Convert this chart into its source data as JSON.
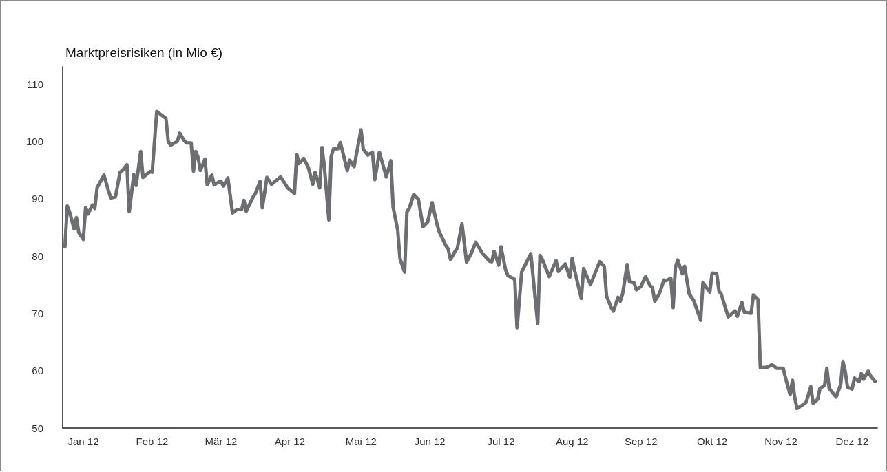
{
  "chart_data": {
    "type": "line",
    "title": "Marktpreisrisiken (in Mio €)",
    "color": "#6d6e71",
    "grid": false,
    "marker": "none",
    "line_style": "solid",
    "xlim": [
      "2012-01-01",
      "2012-12-21"
    ],
    "ylim": [
      50,
      113
    ],
    "yticks": [
      50,
      60,
      70,
      80,
      90,
      100,
      110
    ],
    "xticks": [
      {
        "value": "2012-01-10",
        "label": "Jan 12"
      },
      {
        "value": "2012-02-09",
        "label": "Feb 12"
      },
      {
        "value": "2012-03-10",
        "label": "Mär 12"
      },
      {
        "value": "2012-04-09",
        "label": "Apr 12"
      },
      {
        "value": "2012-05-10",
        "label": "Mai 12"
      },
      {
        "value": "2012-06-09",
        "label": "Jun 12"
      },
      {
        "value": "2012-07-10",
        "label": "Jul 12"
      },
      {
        "value": "2012-08-10",
        "label": "Aug 12"
      },
      {
        "value": "2012-09-09",
        "label": "Sep 12"
      },
      {
        "value": "2012-10-10",
        "label": "Okt 12"
      },
      {
        "value": "2012-11-09",
        "label": "Nov 12"
      },
      {
        "value": "2012-12-10",
        "label": "Dez 12"
      }
    ],
    "x": [
      "2012-01-02",
      "2012-01-03",
      "2012-01-04",
      "2012-01-06",
      "2012-01-07",
      "2012-01-08",
      "2012-01-10",
      "2012-01-11",
      "2012-01-12",
      "2012-01-14",
      "2012-01-15",
      "2012-01-16",
      "2012-01-19",
      "2012-01-21",
      "2012-01-22",
      "2012-01-24",
      "2012-01-26",
      "2012-01-27",
      "2012-01-29",
      "2012-01-30",
      "2012-02-01",
      "2012-02-02",
      "2012-02-04",
      "2012-02-05",
      "2012-02-08",
      "2012-02-09",
      "2012-02-11",
      "2012-02-13",
      "2012-02-15",
      "2012-02-16",
      "2012-02-17",
      "2012-02-20",
      "2012-02-21",
      "2012-02-23",
      "2012-02-24",
      "2012-02-26",
      "2012-02-27",
      "2012-02-28",
      "2012-02-29",
      "2012-03-01",
      "2012-03-03",
      "2012-03-04",
      "2012-03-06",
      "2012-03-07",
      "2012-03-09",
      "2012-03-10",
      "2012-03-11",
      "2012-03-13",
      "2012-03-15",
      "2012-03-17",
      "2012-03-19",
      "2012-03-20",
      "2012-03-21",
      "2012-03-24",
      "2012-03-25",
      "2012-03-27",
      "2012-03-28",
      "2012-03-30",
      "2012-04-01",
      "2012-04-05",
      "2012-04-08",
      "2012-04-11",
      "2012-04-12",
      "2012-04-13",
      "2012-04-15",
      "2012-04-17",
      "2012-04-19",
      "2012-04-20",
      "2012-04-22",
      "2012-04-23",
      "2012-04-24",
      "2012-04-26",
      "2012-04-27",
      "2012-04-28",
      "2012-04-30",
      "2012-05-01",
      "2012-05-04",
      "2012-05-05",
      "2012-05-07",
      "2012-05-10",
      "2012-05-11",
      "2012-05-13",
      "2012-05-15",
      "2012-05-16",
      "2012-05-18",
      "2012-05-21",
      "2012-05-23",
      "2012-05-24",
      "2012-05-26",
      "2012-05-27",
      "2012-05-29",
      "2012-05-30",
      "2012-05-31",
      "2012-06-02",
      "2012-06-04",
      "2012-06-06",
      "2012-06-08",
      "2012-06-10",
      "2012-06-12",
      "2012-06-13",
      "2012-06-16",
      "2012-06-17",
      "2012-06-18",
      "2012-06-20",
      "2012-06-21",
      "2012-06-23",
      "2012-06-25",
      "2012-06-27",
      "2012-06-29",
      "2012-07-02",
      "2012-07-05",
      "2012-07-06",
      "2012-07-07",
      "2012-07-09",
      "2012-07-10",
      "2012-07-12",
      "2012-07-13",
      "2012-07-16",
      "2012-07-17",
      "2012-07-19",
      "2012-07-23",
      "2012-07-26",
      "2012-07-27",
      "2012-07-28",
      "2012-07-31",
      "2012-08-03",
      "2012-08-04",
      "2012-08-07",
      "2012-08-09",
      "2012-08-10",
      "2012-08-11",
      "2012-08-14",
      "2012-08-15",
      "2012-08-18",
      "2012-08-22",
      "2012-08-24",
      "2012-08-25",
      "2012-08-27",
      "2012-08-28",
      "2012-08-30",
      "2012-08-31",
      "2012-09-01",
      "2012-09-03",
      "2012-09-04",
      "2012-09-06",
      "2012-09-07",
      "2012-09-09",
      "2012-09-11",
      "2012-09-13",
      "2012-09-14",
      "2012-09-15",
      "2012-09-17",
      "2012-09-19",
      "2012-09-20",
      "2012-09-22",
      "2012-09-23",
      "2012-09-24",
      "2012-09-25",
      "2012-09-27",
      "2012-09-28",
      "2012-09-30",
      "2012-10-02",
      "2012-10-05",
      "2012-10-06",
      "2012-10-09",
      "2012-10-10",
      "2012-10-12",
      "2012-10-13",
      "2012-10-14",
      "2012-10-16",
      "2012-10-17",
      "2012-10-20",
      "2012-10-21",
      "2012-10-23",
      "2012-10-24",
      "2012-10-27",
      "2012-10-28",
      "2012-10-30",
      "2012-10-31",
      "2012-11-03",
      "2012-11-05",
      "2012-11-06",
      "2012-11-07",
      "2012-11-10",
      "2012-11-11",
      "2012-11-13",
      "2012-11-14",
      "2012-11-15",
      "2012-11-16",
      "2012-11-18",
      "2012-11-20",
      "2012-11-22",
      "2012-11-23",
      "2012-11-25",
      "2012-11-26",
      "2012-11-28",
      "2012-11-29",
      "2012-11-30",
      "2012-12-03",
      "2012-12-05",
      "2012-12-06",
      "2012-12-07",
      "2012-12-08",
      "2012-12-10",
      "2012-12-11",
      "2012-12-13",
      "2012-12-14",
      "2012-12-15",
      "2012-12-17",
      "2012-12-18",
      "2012-12-20"
    ],
    "values": [
      81.6,
      88.7,
      87.7,
      84.7,
      86.7,
      84.1,
      82.9,
      88.5,
      87.3,
      88.9,
      88.3,
      91.9,
      94.1,
      91.3,
      90.1,
      90.3,
      94.6,
      94.9,
      95.9,
      87.7,
      94.2,
      92.3,
      98.2,
      93.7,
      94.7,
      94.6,
      105.2,
      104.6,
      104.0,
      100.0,
      99.3,
      100.0,
      101.4,
      100.1,
      99.7,
      99.7,
      94.8,
      98.2,
      97.2,
      94.9,
      96.9,
      92.4,
      94.1,
      92.4,
      92.9,
      93.0,
      92.2,
      93.6,
      87.5,
      88.1,
      88.1,
      89.7,
      87.8,
      90.3,
      90.9,
      93.0,
      88.4,
      93.7,
      92.5,
      93.8,
      91.9,
      90.9,
      97.7,
      96.1,
      97.0,
      95.5,
      92.5,
      94.6,
      91.9,
      98.9,
      95.7,
      86.3,
      97.3,
      98.7,
      98.7,
      99.8,
      94.9,
      96.7,
      95.6,
      102.0,
      98.6,
      97.6,
      98.1,
      93.3,
      98.1,
      93.8,
      96.6,
      88.5,
      84.5,
      79.5,
      77.2,
      87.7,
      88.3,
      90.7,
      89.9,
      85.1,
      85.9,
      89.3,
      85.7,
      84.3,
      81.8,
      81.2,
      79.4,
      80.8,
      81.4,
      85.6,
      78.9,
      80.4,
      82.4,
      80.4,
      79.1,
      79.0,
      80.8,
      78.4,
      81.6,
      77.6,
      76.6,
      75.9,
      67.5,
      77.2,
      80.4,
      68.2,
      80.1,
      79.4,
      76.4,
      79.2,
      77.3,
      78.6,
      76.3,
      79.6,
      77.6,
      72.6,
      77.8,
      75.0,
      79.0,
      78.2,
      73.0,
      71.0,
      70.4,
      72.8,
      72.1,
      73.4,
      78.5,
      75.5,
      75.3,
      74.1,
      74.7,
      76.4,
      74.8,
      74.5,
      72.1,
      73.4,
      75.8,
      75.7,
      76.1,
      71.0,
      78.0,
      79.3,
      76.9,
      78.2,
      73.4,
      72.2,
      68.8,
      75.3,
      73.7,
      77.0,
      76.9,
      73.9,
      73.3,
      70.7,
      69.4,
      70.4,
      69.5,
      71.9,
      70.2,
      70.0,
      73.2,
      72.4,
      60.5,
      60.6,
      61.0,
      60.8,
      60.4,
      60.4,
      58.7,
      55.8,
      58.3,
      55.3,
      53.4,
      53.9,
      54.5,
      57.2,
      54.3,
      55.0,
      56.9,
      57.4,
      60.4,
      56.9,
      55.4,
      57.5,
      61.6,
      59.9,
      57.1,
      56.8,
      58.7,
      58.1,
      59.5,
      58.5,
      59.9,
      59.1,
      58.1
    ]
  }
}
